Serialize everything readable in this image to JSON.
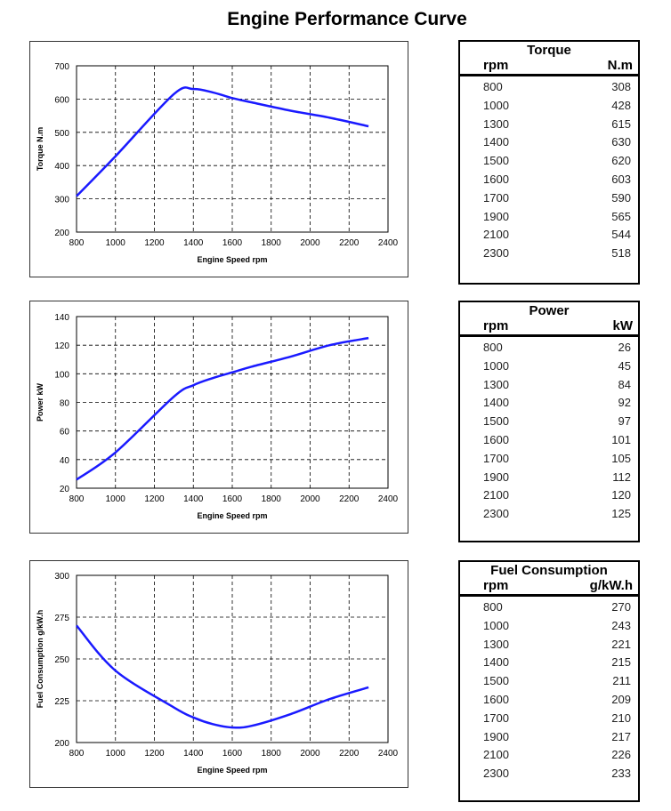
{
  "title": "Engine Performance Curve",
  "chart_data": [
    {
      "type": "line",
      "key": "torque",
      "title": "Torque",
      "ylabel": "Torque N.m",
      "xlabel": "Engine Speed rpm",
      "unit": "N.m",
      "xlim": [
        800,
        2400
      ],
      "ylim": [
        200,
        700
      ],
      "xticks": [
        800,
        1000,
        1200,
        1400,
        1600,
        1800,
        2000,
        2200,
        2400
      ],
      "yticks": [
        200,
        300,
        400,
        500,
        600,
        700
      ],
      "grid": true,
      "color": "#1a1aff",
      "x": [
        800,
        1000,
        1300,
        1400,
        1500,
        1600,
        1700,
        1900,
        2100,
        2300
      ],
      "y": [
        308,
        428,
        615,
        630,
        620,
        603,
        590,
        565,
        544,
        518
      ]
    },
    {
      "type": "line",
      "key": "power",
      "title": "Power",
      "ylabel": "Power kW",
      "xlabel": "Engine Speed rpm",
      "unit": "kW",
      "xlim": [
        800,
        2400
      ],
      "ylim": [
        20,
        140
      ],
      "xticks": [
        800,
        1000,
        1200,
        1400,
        1600,
        1800,
        2000,
        2200,
        2400
      ],
      "yticks": [
        20,
        40,
        60,
        80,
        100,
        120,
        140
      ],
      "grid": true,
      "color": "#1a1aff",
      "x": [
        800,
        1000,
        1300,
        1400,
        1500,
        1600,
        1700,
        1900,
        2100,
        2300
      ],
      "y": [
        26,
        45,
        84,
        92,
        97,
        101,
        105,
        112,
        120,
        125
      ]
    },
    {
      "type": "line",
      "key": "fuel",
      "title": "Fuel Consumption",
      "ylabel": "Fuel Consumption g/kW.h",
      "xlabel": "Engine Speed rpm",
      "unit": "g/kW.h",
      "xlim": [
        800,
        2400
      ],
      "ylim": [
        200,
        300
      ],
      "xticks": [
        800,
        1000,
        1200,
        1400,
        1600,
        1800,
        2000,
        2200,
        2400
      ],
      "yticks": [
        200,
        225,
        250,
        275,
        300
      ],
      "grid": true,
      "color": "#1a1aff",
      "x": [
        800,
        1000,
        1300,
        1400,
        1500,
        1600,
        1700,
        1900,
        2100,
        2300
      ],
      "y": [
        270,
        243,
        221,
        215,
        211,
        209,
        210,
        217,
        226,
        233
      ]
    }
  ],
  "tables": [
    {
      "title": "Torque",
      "col1": "rpm",
      "col2": "N.m"
    },
    {
      "title": "Power",
      "col1": "rpm",
      "col2": "kW"
    },
    {
      "title": "Fuel Consumption",
      "col1": "rpm",
      "col2": "g/kW.h"
    }
  ]
}
